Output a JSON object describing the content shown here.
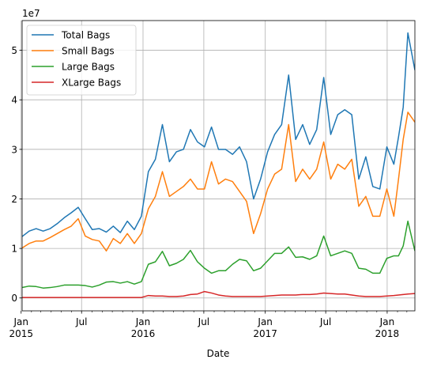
{
  "chart_data": {
    "type": "line",
    "xlabel": "Date",
    "ylabel": "",
    "y_offset_label": "1e7",
    "ylim": [
      -2600000,
      56000000
    ],
    "xlim": [
      "2015-01-04",
      "2018-03-25"
    ],
    "grid": true,
    "legend_position": "top-left",
    "y_ticks": [
      {
        "value": 0,
        "label": "0"
      },
      {
        "value": 10000000,
        "label": "1"
      },
      {
        "value": 20000000,
        "label": "2"
      },
      {
        "value": 30000000,
        "label": "3"
      },
      {
        "value": 40000000,
        "label": "4"
      },
      {
        "value": 50000000,
        "label": "5"
      }
    ],
    "x_major_ticks": [
      {
        "date": "2015-01-01",
        "label": "Jan",
        "year": "2015"
      },
      {
        "date": "2015-07-01",
        "label": "Jul",
        "year": ""
      },
      {
        "date": "2016-01-01",
        "label": "Jan",
        "year": "2016"
      },
      {
        "date": "2016-07-01",
        "label": "Jul",
        "year": ""
      },
      {
        "date": "2017-01-01",
        "label": "Jan",
        "year": "2017"
      },
      {
        "date": "2017-07-01",
        "label": "Jul",
        "year": ""
      },
      {
        "date": "2018-01-01",
        "label": "Jan",
        "year": "2018"
      }
    ],
    "x_minor_ticks": [
      "2015-02-01",
      "2015-03-01",
      "2015-04-01",
      "2015-05-01",
      "2015-06-01",
      "2015-08-01",
      "2015-09-01",
      "2015-10-01",
      "2015-11-01",
      "2015-12-01",
      "2016-02-01",
      "2016-03-01",
      "2016-04-01",
      "2016-05-01",
      "2016-06-01",
      "2016-08-01",
      "2016-09-01",
      "2016-10-01",
      "2016-11-01",
      "2016-12-01",
      "2017-02-01",
      "2017-03-01",
      "2017-04-01",
      "2017-05-01",
      "2017-06-01",
      "2017-08-01",
      "2017-09-01",
      "2017-10-01",
      "2017-11-01",
      "2017-12-01",
      "2018-02-01",
      "2018-03-01"
    ],
    "x": [
      "2015-01-04",
      "2015-01-25",
      "2015-02-15",
      "2015-03-08",
      "2015-03-29",
      "2015-04-19",
      "2015-05-10",
      "2015-05-31",
      "2015-06-21",
      "2015-07-12",
      "2015-08-02",
      "2015-08-23",
      "2015-09-13",
      "2015-10-04",
      "2015-10-25",
      "2015-11-15",
      "2015-12-06",
      "2015-12-27",
      "2016-01-17",
      "2016-02-07",
      "2016-02-28",
      "2016-03-20",
      "2016-04-10",
      "2016-05-01",
      "2016-05-22",
      "2016-06-12",
      "2016-07-03",
      "2016-07-24",
      "2016-08-14",
      "2016-09-04",
      "2016-09-25",
      "2016-10-16",
      "2016-11-06",
      "2016-11-27",
      "2016-12-18",
      "2017-01-08",
      "2017-01-29",
      "2017-02-19",
      "2017-03-12",
      "2017-04-02",
      "2017-04-23",
      "2017-05-14",
      "2017-06-04",
      "2017-06-25",
      "2017-07-16",
      "2017-08-06",
      "2017-08-27",
      "2017-09-17",
      "2017-10-08",
      "2017-10-29",
      "2017-11-19",
      "2017-12-10",
      "2017-12-31",
      "2018-01-21",
      "2018-02-04",
      "2018-02-18",
      "2018-03-04",
      "2018-03-25"
    ],
    "series": [
      {
        "name": "Total Bags",
        "color": "#1f77b4",
        "values": [
          12400000,
          13500000,
          14000000,
          13500000,
          14000000,
          15000000,
          16200000,
          17200000,
          18300000,
          16000000,
          13800000,
          14000000,
          13300000,
          14500000,
          13200000,
          15500000,
          13800000,
          16500000,
          25500000,
          28000000,
          35000000,
          27500000,
          29500000,
          30000000,
          34000000,
          31500000,
          30500000,
          34500000,
          30000000,
          30000000,
          29000000,
          30500000,
          27500000,
          20000000,
          24000000,
          29500000,
          33000000,
          35000000,
          45000000,
          32000000,
          35000000,
          31000000,
          34000000,
          44500000,
          33000000,
          37000000,
          38000000,
          37000000,
          24000000,
          28500000,
          22500000,
          22000000,
          30500000,
          27000000,
          32500000,
          38500000,
          53500000,
          46000000
        ]
      },
      {
        "name": "Small Bags",
        "color": "#ff7f0e",
        "values": [
          10100000,
          11000000,
          11500000,
          11500000,
          12200000,
          13000000,
          13800000,
          14500000,
          16000000,
          12500000,
          11800000,
          11500000,
          9500000,
          12000000,
          11000000,
          13000000,
          11000000,
          13000000,
          18000000,
          20500000,
          25500000,
          20500000,
          21500000,
          22500000,
          24000000,
          22000000,
          22000000,
          27500000,
          23000000,
          24000000,
          23500000,
          21500000,
          19500000,
          13000000,
          17000000,
          22000000,
          25000000,
          26000000,
          35000000,
          23500000,
          26000000,
          24000000,
          26000000,
          31500000,
          24000000,
          27000000,
          26000000,
          28000000,
          18500000,
          20500000,
          16500000,
          16500000,
          22000000,
          16500000,
          24000000,
          32000000,
          37500000,
          35500000
        ]
      },
      {
        "name": "Large Bags",
        "color": "#2ca02c",
        "values": [
          2100000,
          2400000,
          2300000,
          2000000,
          2100000,
          2300000,
          2600000,
          2600000,
          2600000,
          2500000,
          2200000,
          2600000,
          3200000,
          3300000,
          3000000,
          3300000,
          2800000,
          3300000,
          6800000,
          7300000,
          9400000,
          6500000,
          7000000,
          7800000,
          9600000,
          7300000,
          6000000,
          5000000,
          5500000,
          5500000,
          6800000,
          7800000,
          7500000,
          5500000,
          6000000,
          7500000,
          9000000,
          9000000,
          10300000,
          8200000,
          8300000,
          7800000,
          8500000,
          12500000,
          8500000,
          9000000,
          9500000,
          9000000,
          6000000,
          5800000,
          5000000,
          5000000,
          8000000,
          8500000,
          8500000,
          10500000,
          15500000,
          9500000
        ]
      },
      {
        "name": "XLarge Bags",
        "color": "#d62728",
        "values": [
          100000,
          100000,
          100000,
          100000,
          100000,
          100000,
          100000,
          100000,
          100000,
          100000,
          100000,
          100000,
          100000,
          100000,
          100000,
          100000,
          100000,
          100000,
          500000,
          400000,
          400000,
          300000,
          300000,
          400000,
          700000,
          800000,
          1300000,
          1000000,
          600000,
          400000,
          300000,
          300000,
          300000,
          300000,
          300000,
          400000,
          500000,
          600000,
          600000,
          600000,
          700000,
          700000,
          800000,
          1000000,
          900000,
          800000,
          800000,
          600000,
          400000,
          300000,
          300000,
          300000,
          400000,
          500000,
          600000,
          700000,
          800000,
          900000
        ]
      }
    ]
  }
}
